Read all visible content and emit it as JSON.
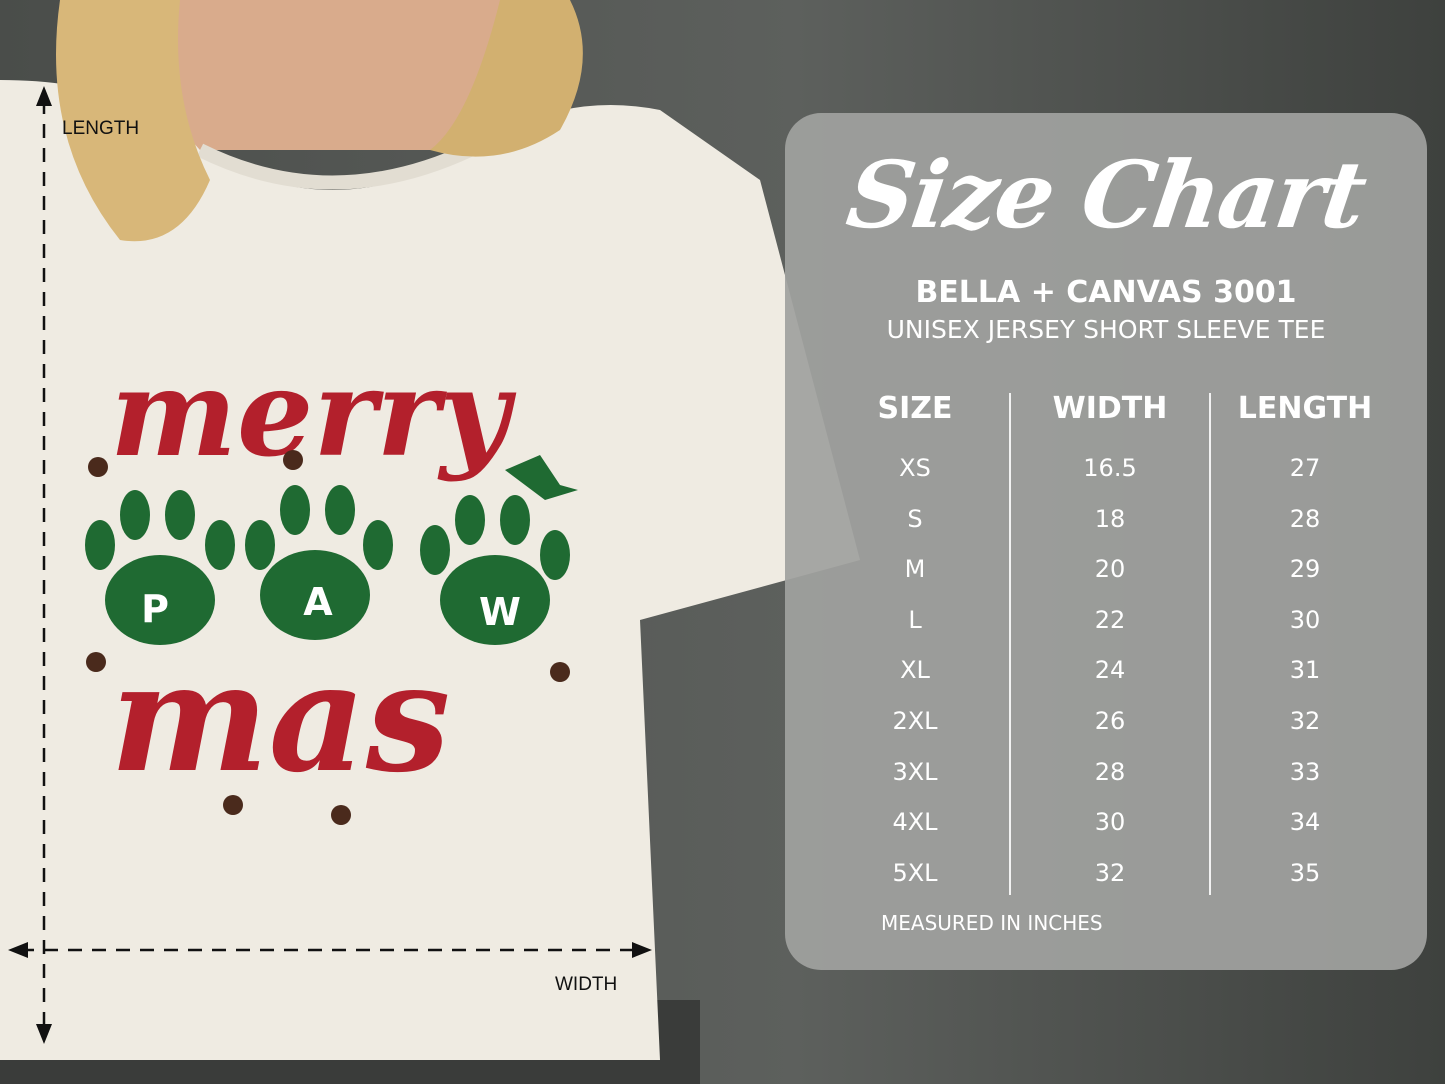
{
  "design": {
    "line1": "merry",
    "paw_letters": [
      "P",
      "A",
      "W"
    ],
    "line2": "mas"
  },
  "measure": {
    "length_label": "LENGTH",
    "width_label": "WIDTH"
  },
  "chart": {
    "title": "Size Chart",
    "brand": "BELLA + CANVAS 3001",
    "subtitle": "UNISEX JERSEY SHORT SLEEVE TEE",
    "columns": [
      "SIZE",
      "WIDTH",
      "LENGTH"
    ],
    "sizes": [
      "XS",
      "S",
      "M",
      "L",
      "XL",
      "2XL",
      "3XL",
      "4XL",
      "5XL"
    ],
    "widths": [
      "16.5",
      "18",
      "20",
      "22",
      "24",
      "26",
      "28",
      "30",
      "32"
    ],
    "lengths": [
      "27",
      "28",
      "29",
      "30",
      "31",
      "32",
      "33",
      "34",
      "35"
    ],
    "footnote": "MEASURED IN INCHES"
  },
  "colors": {
    "red": "#b3202c",
    "green": "#1f6a32",
    "brown": "#4a2a1c",
    "shirt": "#efebe2"
  }
}
